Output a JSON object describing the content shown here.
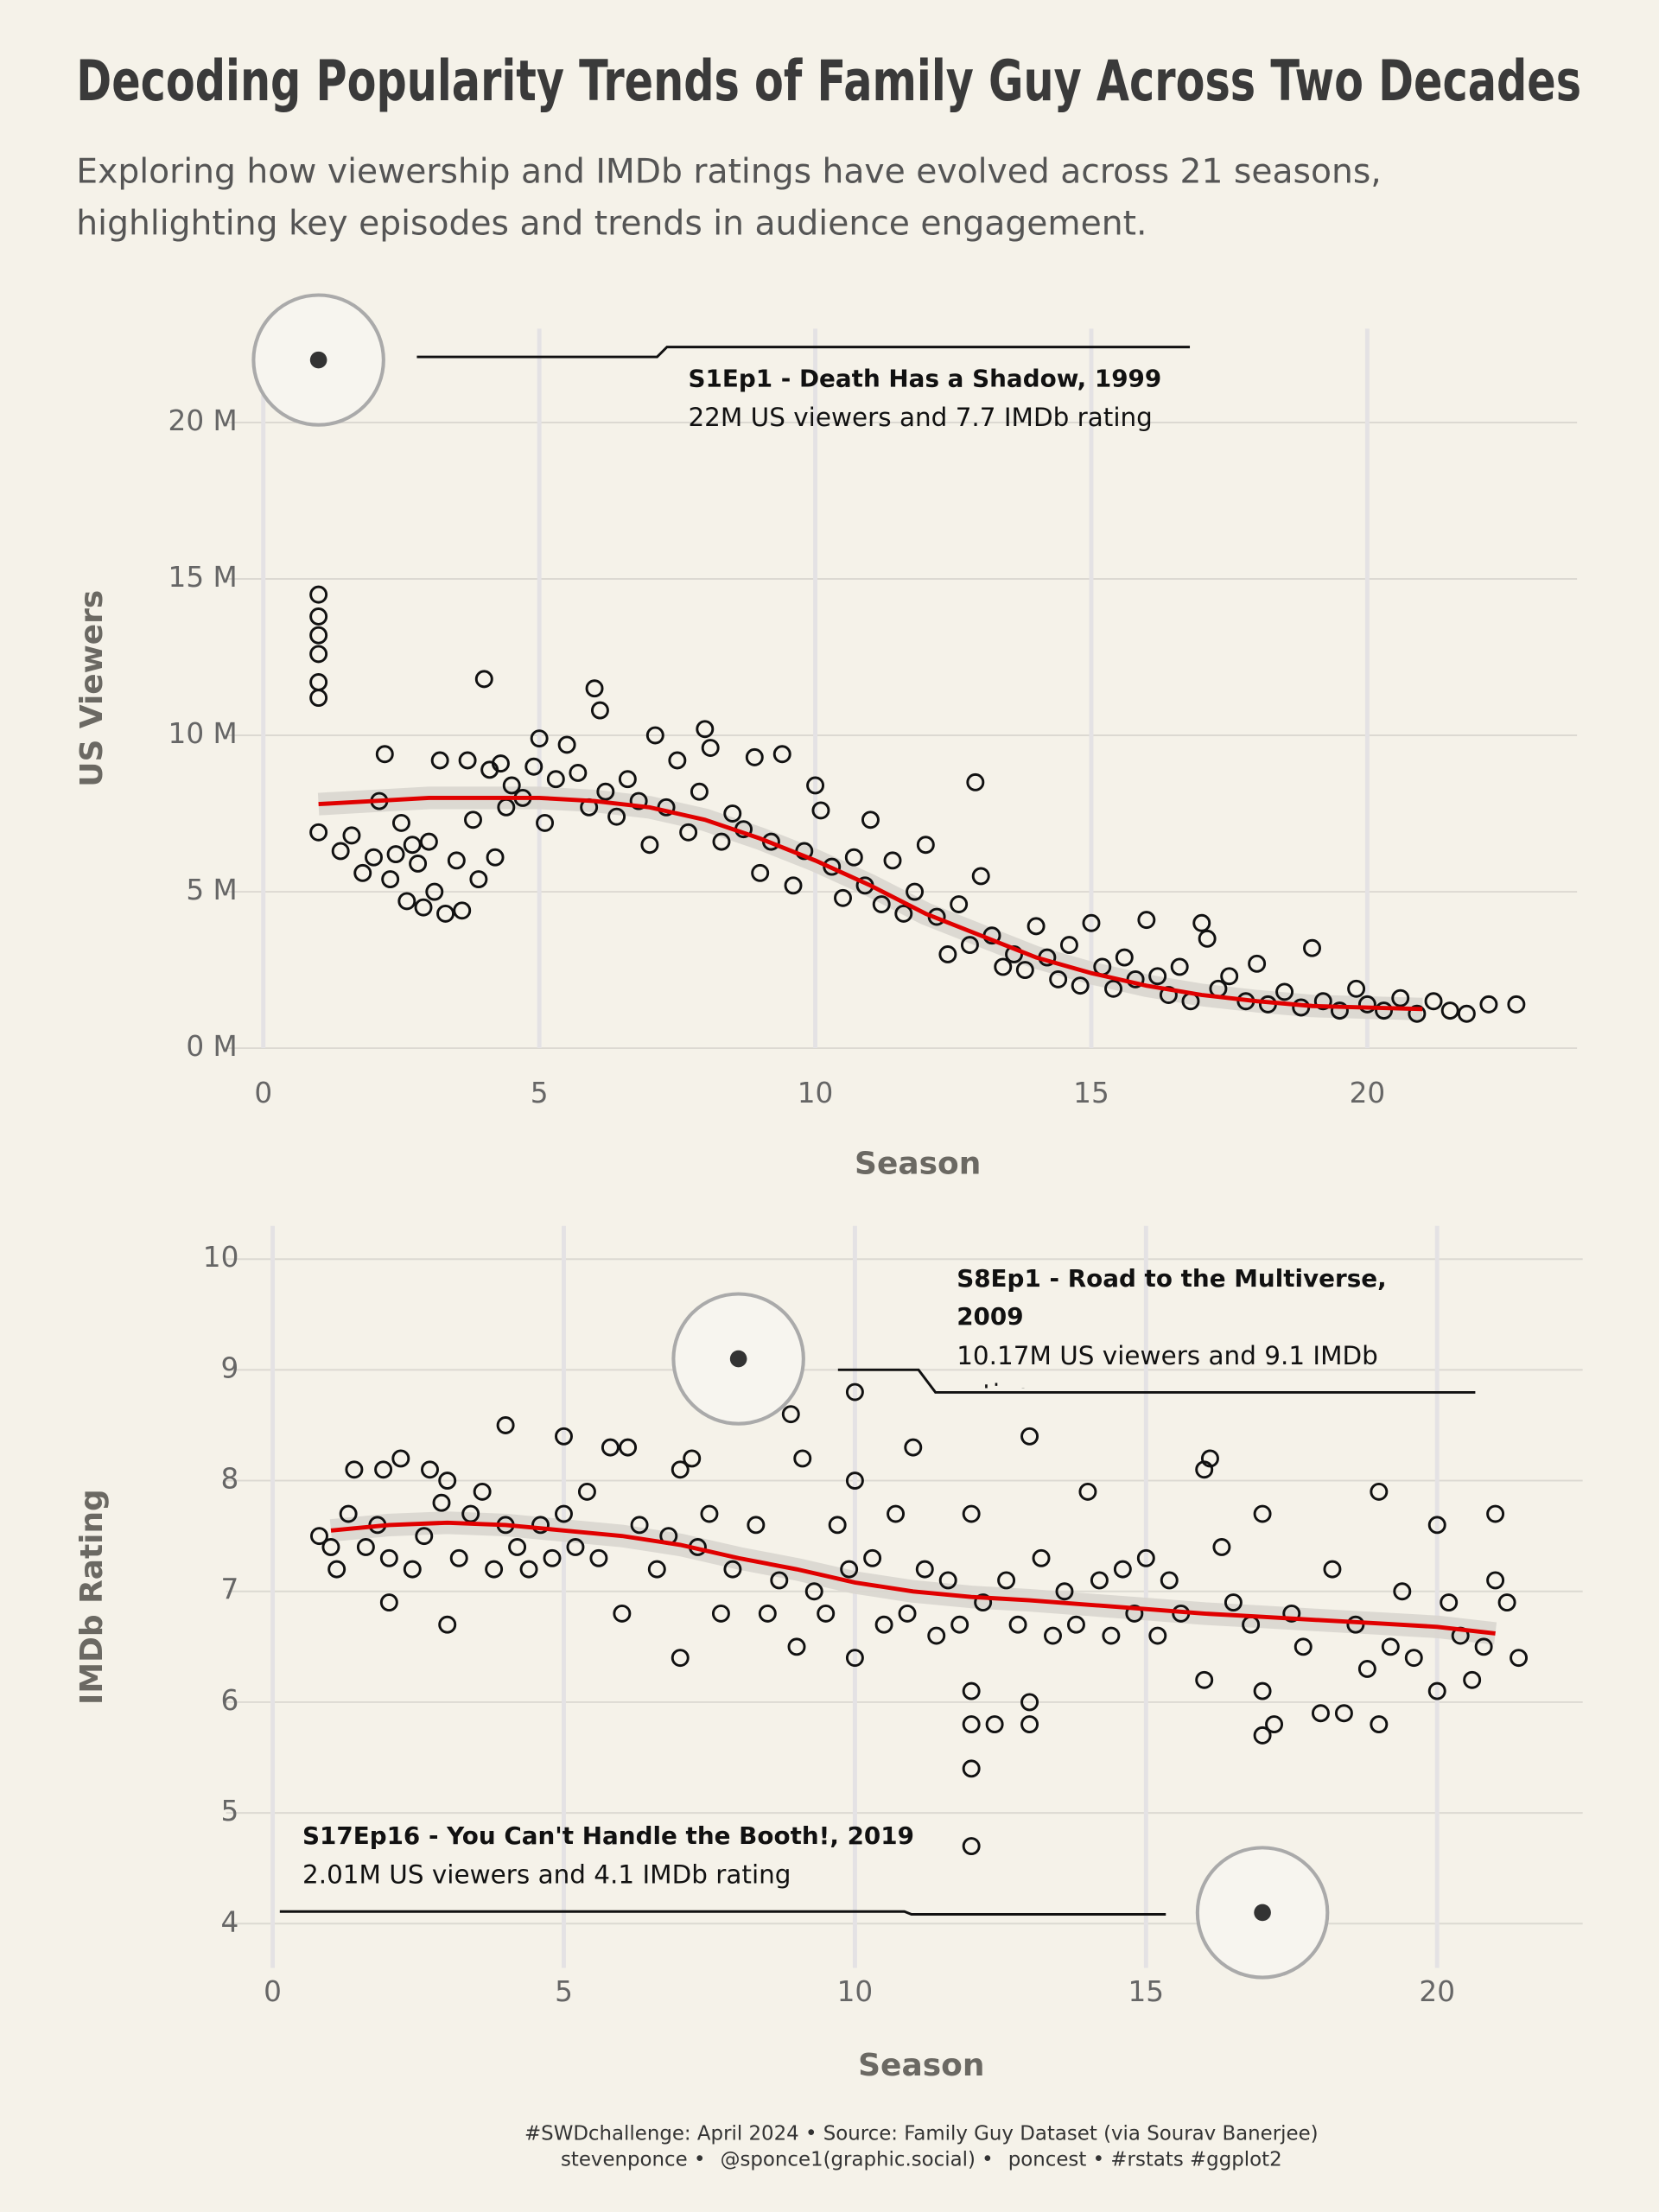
{
  "title": "Decoding Popularity Trends of Family Guy Across Two Decades",
  "subtitle": [
    "Exploring how viewership and IMDb ratings have evolved across 21 seasons,",
    "highlighting key episodes and trends in audience engagement."
  ],
  "caption": [
    "#SWDchallenge: April 2024 • Source: Family Guy Dataset (via Sourav Banerjee)",
    "stevenponce •",
    "@sponce1(graphic.social) •",
    "poncest • #rstats #ggplot2"
  ],
  "chart_data": [
    {
      "type": "scatter",
      "x_label": "Season",
      "y_label": "US Viewers",
      "grid": true,
      "color": "#111111",
      "xlim": [
        -0.7,
        23.8
      ],
      "ylim": [
        0,
        23
      ],
      "xticks": [
        0,
        5,
        10,
        15,
        20
      ],
      "yticks": [
        {
          "value": 0,
          "label": "0 M"
        },
        {
          "value": 5,
          "label": "5 M"
        },
        {
          "value": 10,
          "label": "10 M"
        },
        {
          "value": 15,
          "label": "15 M"
        },
        {
          "value": 20,
          "label": "20 M"
        }
      ],
      "x": [
        1,
        1,
        1,
        1,
        1,
        1,
        1,
        1.4,
        1.6,
        1.8,
        2,
        2.1,
        2.2,
        2.3,
        2.4,
        2.5,
        2.6,
        2.7,
        2.8,
        2.9,
        3,
        3.1,
        3.2,
        3.3,
        3.5,
        3.6,
        3.7,
        3.8,
        3.9,
        4,
        4.1,
        4.2,
        4.3,
        4.4,
        4.5,
        4.7,
        4.9,
        5,
        5.1,
        5.3,
        5.5,
        5.7,
        5.9,
        6,
        6.1,
        6.2,
        6.4,
        6.6,
        6.8,
        7,
        7.1,
        7.3,
        7.5,
        7.7,
        7.9,
        8,
        8.1,
        8.3,
        8.5,
        8.7,
        8.9,
        9,
        9.2,
        9.4,
        9.6,
        9.8,
        10,
        10.1,
        10.3,
        10.5,
        10.7,
        10.9,
        11,
        11.2,
        11.4,
        11.6,
        11.8,
        12,
        12.2,
        12.4,
        12.6,
        12.8,
        12.9,
        13,
        13.2,
        13.4,
        13.6,
        13.8,
        14,
        14.2,
        14.4,
        14.6,
        14.8,
        15,
        15.2,
        15.4,
        15.6,
        15.8,
        16,
        16.2,
        16.4,
        16.6,
        16.8,
        17,
        17.1,
        17.3,
        17.5,
        17.8,
        18,
        18.2,
        18.5,
        18.8,
        19,
        19.2,
        19.5,
        19.8,
        20,
        20.3,
        20.6,
        20.9,
        21.2,
        21.5,
        21.8,
        22.2,
        22.7
      ],
      "values": [
        14.5,
        13.8,
        13.2,
        12.6,
        11.7,
        11.2,
        6.9,
        6.3,
        6.8,
        5.6,
        6.1,
        7.9,
        9.4,
        5.4,
        6.2,
        7.2,
        4.7,
        6.5,
        5.9,
        4.5,
        6.6,
        5.0,
        9.2,
        4.3,
        6.0,
        4.4,
        9.2,
        7.3,
        5.4,
        11.8,
        8.9,
        6.1,
        9.1,
        7.7,
        8.4,
        8.0,
        9.0,
        9.9,
        7.2,
        8.6,
        9.7,
        8.8,
        7.7,
        11.5,
        10.8,
        8.2,
        7.4,
        8.6,
        7.9,
        6.5,
        10.0,
        7.7,
        9.2,
        6.9,
        8.2,
        10.2,
        9.6,
        6.6,
        7.5,
        7.0,
        9.3,
        5.6,
        6.6,
        9.4,
        5.2,
        6.3,
        8.4,
        7.6,
        5.8,
        4.8,
        6.1,
        5.2,
        7.3,
        4.6,
        6.0,
        4.3,
        5.0,
        6.5,
        4.2,
        3.0,
        4.6,
        3.3,
        8.5,
        5.5,
        3.6,
        2.6,
        3.0,
        2.5,
        3.9,
        2.9,
        2.2,
        3.3,
        2.0,
        4.0,
        2.6,
        1.9,
        2.9,
        2.2,
        4.1,
        2.3,
        1.7,
        2.6,
        1.5,
        4.0,
        3.5,
        1.9,
        2.3,
        1.5,
        2.7,
        1.4,
        1.8,
        1.3,
        3.2,
        1.5,
        1.2,
        1.9,
        1.4,
        1.2,
        1.6,
        1.1,
        1.5,
        1.2,
        1.1,
        1.4,
        1.4
      ],
      "trend": {
        "color": "#e00000",
        "x": [
          1,
          2,
          3,
          4,
          5,
          6,
          7,
          8,
          9,
          10,
          11,
          12,
          13,
          14,
          15,
          16,
          17,
          18,
          19,
          20,
          21
        ],
        "values": [
          7.8,
          7.9,
          8.0,
          8.0,
          8.0,
          7.9,
          7.7,
          7.3,
          6.7,
          6.0,
          5.2,
          4.3,
          3.6,
          2.9,
          2.4,
          2.0,
          1.7,
          1.5,
          1.35,
          1.3,
          1.25
        ]
      },
      "annotations": [
        {
          "x": 1,
          "y": 22,
          "title": "S1Ep1 - Death Has a Shadow, 1999",
          "text": "22M US viewers and 7.7 IMDb rating"
        }
      ]
    },
    {
      "type": "scatter",
      "x_label": "Season",
      "y_label": "IMDb Rating",
      "grid": true,
      "color": "#111111",
      "xlim": [
        -0.8,
        22.5
      ],
      "ylim": [
        3.6,
        10.3
      ],
      "xticks": [
        0,
        5,
        10,
        15,
        20
      ],
      "yticks": [
        4,
        5,
        6,
        7,
        8,
        9,
        10
      ],
      "x": [
        0.8,
        1,
        1.1,
        1.3,
        1.4,
        1.6,
        1.8,
        1.9,
        2,
        2,
        2.2,
        2.4,
        2.6,
        2.7,
        2.9,
        3,
        3,
        3.2,
        3.4,
        3.6,
        3.8,
        4,
        4,
        4.2,
        4.4,
        4.6,
        4.8,
        5,
        5,
        5.2,
        5.4,
        5.6,
        5.8,
        6,
        6.1,
        6.3,
        6.6,
        6.8,
        7,
        7,
        7.2,
        7.3,
        7.5,
        7.7,
        7.9,
        8.3,
        8.5,
        8.7,
        8.9,
        9,
        9.1,
        9.3,
        9.5,
        9.7,
        9.9,
        10,
        10,
        10,
        10.3,
        10.5,
        10.7,
        10.9,
        11,
        11.2,
        11.4,
        11.6,
        11.8,
        12,
        12,
        12,
        12,
        12,
        12.2,
        12.4,
        12.6,
        12.8,
        13,
        13,
        13,
        13.2,
        13.4,
        13.6,
        13.8,
        14,
        14.2,
        14.4,
        14.6,
        14.8,
        15,
        15.2,
        15.4,
        15.6,
        16,
        16,
        16.1,
        16.3,
        16.5,
        16.8,
        17,
        17,
        17,
        17.2,
        17.5,
        17.7,
        18,
        18.2,
        18.4,
        18.6,
        18.8,
        19,
        19,
        19.2,
        19.4,
        19.6,
        20,
        20,
        20.2,
        20.4,
        20.6,
        20.8,
        21,
        21,
        21.2,
        21.4
      ],
      "values": [
        7.5,
        7.4,
        7.2,
        7.7,
        8.1,
        7.4,
        7.6,
        8.1,
        7.3,
        6.9,
        8.2,
        7.2,
        7.5,
        8.1,
        7.8,
        6.7,
        8.0,
        7.3,
        7.7,
        7.9,
        7.2,
        8.5,
        7.6,
        7.4,
        7.2,
        7.6,
        7.3,
        8.4,
        7.7,
        7.4,
        7.9,
        7.3,
        8.3,
        6.8,
        8.3,
        7.6,
        7.2,
        7.5,
        6.4,
        8.1,
        8.2,
        7.4,
        7.7,
        6.8,
        7.2,
        7.6,
        6.8,
        7.1,
        8.6,
        6.5,
        8.2,
        7.0,
        6.8,
        7.6,
        7.2,
        8.8,
        6.4,
        8.0,
        7.3,
        6.7,
        7.7,
        6.8,
        8.3,
        7.2,
        6.6,
        7.1,
        6.7,
        4.7,
        5.4,
        5.8,
        6.1,
        7.7,
        6.9,
        5.8,
        7.1,
        6.7,
        8.4,
        5.8,
        6.0,
        7.3,
        6.6,
        7.0,
        6.7,
        7.9,
        7.1,
        6.6,
        7.2,
        6.8,
        7.3,
        6.6,
        7.1,
        6.8,
        6.2,
        8.1,
        8.2,
        7.4,
        6.9,
        6.7,
        7.7,
        6.1,
        5.7,
        5.8,
        6.8,
        6.5,
        5.9,
        7.2,
        5.9,
        6.7,
        6.3,
        7.9,
        5.8,
        6.5,
        7.0,
        6.4,
        7.6,
        6.1,
        6.9,
        6.6,
        6.2,
        6.5,
        7.7,
        7.1,
        6.9,
        6.4
      ],
      "trend": {
        "color": "#e00000",
        "x": [
          1,
          2,
          3,
          4,
          5,
          6,
          7,
          8,
          9,
          10,
          11,
          12,
          13,
          14,
          15,
          16,
          17,
          18,
          19,
          20,
          21
        ],
        "values": [
          7.55,
          7.6,
          7.62,
          7.6,
          7.55,
          7.5,
          7.42,
          7.3,
          7.2,
          7.08,
          7.0,
          6.95,
          6.92,
          6.88,
          6.84,
          6.8,
          6.77,
          6.74,
          6.71,
          6.68,
          6.62
        ]
      },
      "annotations": [
        {
          "x": 8,
          "y": 9.1,
          "title": "S8Ep1 - Road to the Multiverse, 2009",
          "text": "10.17M US viewers and 9.1 IMDb rating"
        },
        {
          "x": 17,
          "y": 4.1,
          "title": "S17Ep16 - You Can't Handle the Booth!, 2019",
          "text": "2.01M US viewers and 4.1 IMDb rating"
        }
      ]
    }
  ]
}
